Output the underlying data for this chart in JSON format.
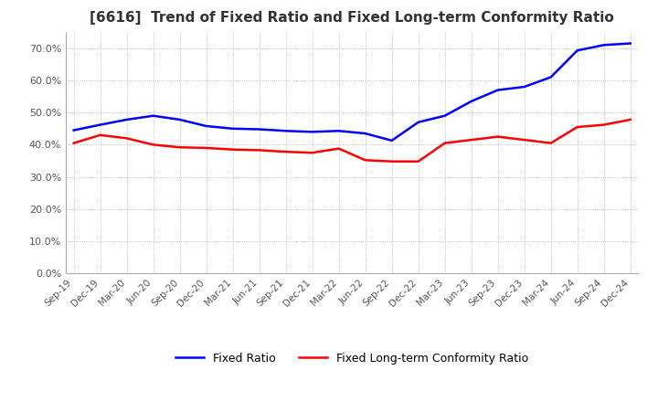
{
  "title": "[6616]  Trend of Fixed Ratio and Fixed Long-term Conformity Ratio",
  "title_fontsize": 11,
  "background_color": "#ffffff",
  "grid_color": "#aaaaaa",
  "ylim": [
    0.0,
    0.75
  ],
  "yticks": [
    0.0,
    0.1,
    0.2,
    0.3,
    0.4,
    0.5,
    0.6,
    0.7
  ],
  "fixed_ratio_color": "#0000ff",
  "fixed_lt_color": "#ff0000",
  "fixed_ratio_label": "Fixed Ratio",
  "fixed_lt_label": "Fixed Long-term Conformity Ratio",
  "x_labels": [
    "Sep-19",
    "Dec-19",
    "Mar-20",
    "Jun-20",
    "Sep-20",
    "Dec-20",
    "Mar-21",
    "Jun-21",
    "Sep-21",
    "Dec-21",
    "Mar-22",
    "Jun-22",
    "Sep-22",
    "Dec-22",
    "Mar-23",
    "Jun-23",
    "Sep-23",
    "Dec-23",
    "Mar-24",
    "Jun-24",
    "Sep-24",
    "Dec-24"
  ],
  "fixed_ratio": [
    0.445,
    0.462,
    0.478,
    0.49,
    0.478,
    0.458,
    0.45,
    0.448,
    0.443,
    0.44,
    0.443,
    0.435,
    0.413,
    0.47,
    0.49,
    0.535,
    0.57,
    0.58,
    0.61,
    0.693,
    0.71,
    0.715
  ],
  "fixed_lt_ratio": [
    0.405,
    0.43,
    0.42,
    0.4,
    0.392,
    0.39,
    0.385,
    0.383,
    0.378,
    0.375,
    0.388,
    0.352,
    0.348,
    0.348,
    0.405,
    0.415,
    0.425,
    0.415,
    0.405,
    0.455,
    0.462,
    0.478
  ]
}
